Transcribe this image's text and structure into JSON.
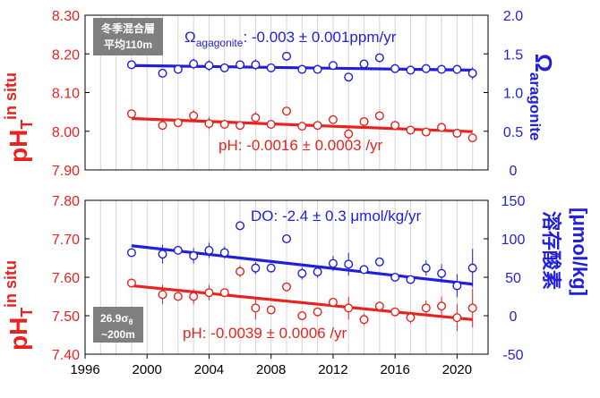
{
  "chart_data": [
    {
      "type": "scatter",
      "panel": "top",
      "y_left_label_main": "pH",
      "y_left_label_sub": "T",
      "y_left_label_sup": "in situ",
      "y_right_label_main": "Ω",
      "y_right_label_sub": "aragonite",
      "y_left_ticks": [
        "8.30",
        "8.20",
        "8.10",
        "8.00",
        "7.90"
      ],
      "y_left_lim": [
        7.9,
        8.3
      ],
      "y_right_ticks": [
        "2.0",
        "1.5",
        "1.0",
        "0.5",
        "0"
      ],
      "y_right_lim": [
        0,
        2.0
      ],
      "x_lim": [
        1996,
        2022
      ],
      "grid": "vertical, every year",
      "label_box": [
        "冬季混合層",
        "平均110m"
      ],
      "annotation_blue_prefix": "Ω",
      "annotation_blue_sub": "agagonite",
      "annotation_blue_rest": ": -0.003 ± 0.001ppm/yr",
      "annotation_red": "pH: -0.0016 ± 0.0003 /yr",
      "series": [
        {
          "color": "#e8231f",
          "axis": "left",
          "x": [
            1999,
            2001,
            2002,
            2003,
            2004,
            2005,
            2006,
            2007,
            2008,
            2009,
            2010,
            2011,
            2012,
            2013,
            2014,
            2015,
            2016,
            2017,
            2018,
            2019,
            2020,
            2021
          ],
          "y": [
            8.045,
            8.015,
            8.022,
            8.04,
            8.02,
            8.018,
            8.015,
            8.035,
            8.018,
            8.052,
            8.013,
            8.015,
            8.03,
            7.993,
            8.025,
            8.04,
            8.015,
            8.003,
            7.998,
            8.01,
            7.995,
            7.983
          ],
          "err": [
            0,
            0.005,
            0.005,
            0.015,
            0.015,
            0.012,
            0.005,
            0.015,
            0.005,
            0,
            0.005,
            0.005,
            0.005,
            0.015,
            0.005,
            0.01,
            0.012,
            0.005,
            0.005,
            0,
            0,
            0.005
          ],
          "trend": [
            [
              1999,
              8.033
            ],
            [
              2021,
              7.999
            ]
          ]
        },
        {
          "color": "#1f1fdc",
          "axis": "right",
          "x": [
            1999,
            2001,
            2002,
            2003,
            2004,
            2005,
            2006,
            2007,
            2008,
            2009,
            2010,
            2011,
            2012,
            2013,
            2014,
            2015,
            2016,
            2017,
            2018,
            2019,
            2020,
            2021
          ],
          "y": [
            1.36,
            1.25,
            1.3,
            1.37,
            1.35,
            1.32,
            1.36,
            1.36,
            1.32,
            1.47,
            1.3,
            1.3,
            1.35,
            1.2,
            1.37,
            1.45,
            1.31,
            1.29,
            1.31,
            1.3,
            1.3,
            1.25
          ],
          "err": [
            0,
            0.05,
            0,
            0.07,
            0.07,
            0,
            0.05,
            0.07,
            0,
            0,
            0.05,
            0.05,
            0.05,
            0,
            0,
            0,
            0.05,
            0.05,
            0.05,
            0,
            0,
            0.08
          ],
          "trend": [
            [
              1999,
              1.35
            ],
            [
              2021,
              1.29
            ]
          ]
        }
      ]
    },
    {
      "type": "scatter",
      "panel": "bottom",
      "y_left_label_main": "pH",
      "y_left_label_sub": "T",
      "y_left_label_sup": "in situ",
      "y_right_label_main": "溶存酸素",
      "y_right_label_unit": "[μmol/kg]",
      "y_left_ticks": [
        "7.80",
        "7.70",
        "7.60",
        "7.50",
        "7.40"
      ],
      "y_left_lim": [
        7.4,
        7.8
      ],
      "y_right_ticks": [
        "150",
        "100",
        "50",
        "0",
        "-50"
      ],
      "y_right_lim": [
        -50,
        150
      ],
      "x_lim": [
        1996,
        2022
      ],
      "x_ticks": [
        "1996",
        "2000",
        "2004",
        "2008",
        "2012",
        "2016",
        "2020"
      ],
      "grid": "vertical, every year",
      "label_box_main": "26.9σ",
      "label_box_sub": "θ",
      "label_box_line2": "~200m",
      "annotation_blue": "DO: -2.4 ± 0.3 μmol/kg/yr",
      "annotation_red": "pH: -0.0039 ± 0.0006 /yr",
      "series": [
        {
          "color": "#e8231f",
          "axis": "left",
          "x": [
            1999,
            2001,
            2002,
            2003,
            2004,
            2005,
            2006,
            2007,
            2008,
            2009,
            2010,
            2011,
            2012,
            2013,
            2014,
            2015,
            2016,
            2017,
            2018,
            2019,
            2020,
            2021
          ],
          "y": [
            7.585,
            7.555,
            7.55,
            7.55,
            7.56,
            7.56,
            7.615,
            7.52,
            7.515,
            7.575,
            7.5,
            7.51,
            7.535,
            7.52,
            7.49,
            7.525,
            7.51,
            7.495,
            7.52,
            7.525,
            7.495,
            7.52
          ],
          "err": [
            0,
            0.025,
            0.01,
            0.02,
            0.02,
            0.01,
            0.015,
            0.03,
            0,
            0,
            0.01,
            0.01,
            0.01,
            0.03,
            0.015,
            0,
            0.01,
            0.015,
            0.02,
            0.025,
            0.035,
            0.05
          ],
          "trend": [
            [
              1999,
              7.578
            ],
            [
              2021,
              7.49
            ]
          ]
        },
        {
          "color": "#1f1fdc",
          "axis": "right",
          "x": [
            1999,
            2001,
            2002,
            2003,
            2004,
            2005,
            2006,
            2007,
            2008,
            2009,
            2010,
            2011,
            2012,
            2013,
            2014,
            2015,
            2016,
            2017,
            2018,
            2019,
            2020,
            2021
          ],
          "y": [
            82,
            80,
            85,
            78,
            85,
            82,
            117,
            62,
            62,
            100,
            55,
            57,
            68,
            67,
            60,
            70,
            50,
            47,
            62,
            55,
            39,
            62
          ],
          "err": [
            0,
            12,
            5,
            10,
            10,
            8,
            5,
            8,
            5,
            0,
            8,
            8,
            10,
            15,
            5,
            5,
            5,
            5,
            10,
            12,
            15,
            25
          ],
          "trend": [
            [
              1999,
              91
            ],
            [
              2021,
              41
            ]
          ]
        }
      ]
    }
  ]
}
